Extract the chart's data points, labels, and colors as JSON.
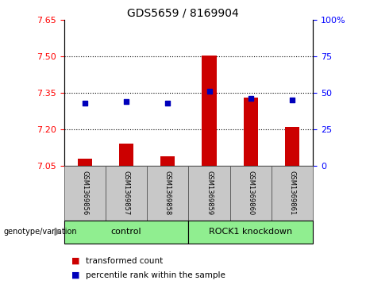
{
  "title": "GDS5659 / 8169904",
  "samples": [
    "GSM1369856",
    "GSM1369857",
    "GSM1369858",
    "GSM1369859",
    "GSM1369860",
    "GSM1369861"
  ],
  "bar_values": [
    7.08,
    7.14,
    7.09,
    7.505,
    7.33,
    7.21
  ],
  "dot_values": [
    43,
    44,
    43,
    51,
    46,
    45
  ],
  "bar_color": "#cc0000",
  "dot_color": "#0000bb",
  "ymin": 7.05,
  "ymax": 7.65,
  "yticks": [
    7.05,
    7.2,
    7.35,
    7.5,
    7.65
  ],
  "y2min": 0,
  "y2max": 100,
  "y2ticks": [
    0,
    25,
    50,
    75,
    100
  ],
  "grid_values": [
    7.2,
    7.35,
    7.5
  ],
  "legend_red_label": "transformed count",
  "legend_blue_label": "percentile rank within the sample"
}
